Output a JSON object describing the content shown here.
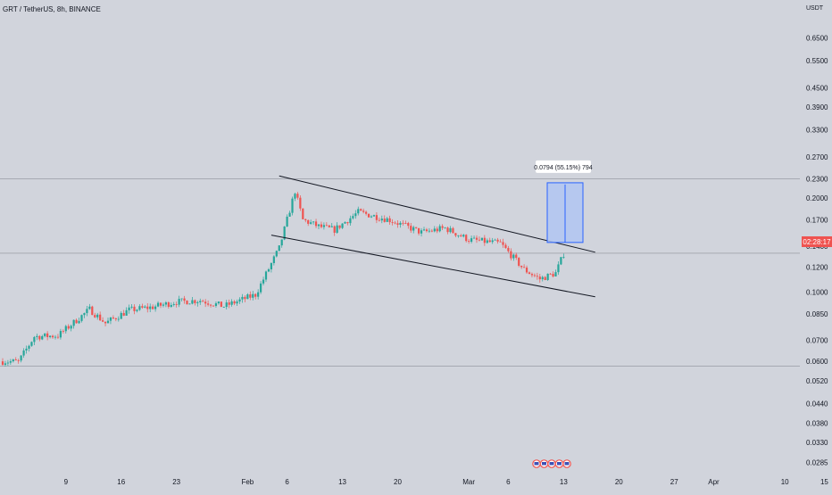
{
  "header": {
    "title": "GRT / TetherUS, 8h, BINANCE"
  },
  "price_label": {
    "text": "02:28:17",
    "price": 0.1325
  },
  "colors": {
    "background": "#d1d4dc",
    "up": "#26a69a",
    "down": "#ef5350",
    "measure_fill": "#b2c6f2",
    "measure_stroke": "#2962ff",
    "price_tag": "#ef5350"
  },
  "event_icons": [
    "icon-1",
    "icon-2",
    "icon-3",
    "icon-4",
    "icon-5"
  ],
  "measure": {
    "label": "0.0794 (55.15%) 794",
    "price_from": 0.144,
    "price_to": 0.2235
  },
  "chart_data": {
    "type": "candlestick",
    "title": "GRT / TetherUS, 8h, BINANCE",
    "y_unit": "USDT",
    "y_scale": "log",
    "ylim": [
      0.0266,
      0.92
    ],
    "y_ticks": [
      0.65,
      0.55,
      0.45,
      0.39,
      0.33,
      0.27,
      0.23,
      0.2,
      0.17,
      0.14,
      0.12,
      0.1,
      0.085,
      0.07,
      0.06,
      0.052,
      0.044,
      0.038,
      0.033,
      0.0285
    ],
    "y_tick_labels": [
      "0.6500",
      "0.5500",
      "0.4500",
      "0.3900",
      "0.3300",
      "0.2700",
      "0.2300",
      "0.2000",
      "0.1700",
      "0.1400",
      "0.1200",
      "0.1000",
      "0.0850",
      "0.0700",
      "0.0600",
      "0.0520",
      "0.0440",
      "0.0380",
      "0.0330",
      "0.0285"
    ],
    "x_ticks": [
      {
        "label": "9",
        "date": "2023-01-09"
      },
      {
        "label": "16",
        "date": "2023-01-16"
      },
      {
        "label": "23",
        "date": "2023-01-23"
      },
      {
        "label": "Feb",
        "date": "2023-02-01"
      },
      {
        "label": "6",
        "date": "2023-02-06"
      },
      {
        "label": "13",
        "date": "2023-02-13"
      },
      {
        "label": "20",
        "date": "2023-02-20"
      },
      {
        "label": "Mar",
        "date": "2023-03-01"
      },
      {
        "label": "6",
        "date": "2023-03-06"
      },
      {
        "label": "13",
        "date": "2023-03-13"
      },
      {
        "label": "20",
        "date": "2023-03-20"
      },
      {
        "label": "27",
        "date": "2023-03-27"
      },
      {
        "label": "Apr",
        "date": "2023-04-01"
      },
      {
        "label": "10",
        "date": "2023-04-10"
      },
      {
        "label": "15",
        "date": "2023-04-15"
      }
    ],
    "horizontal_lines": [
      0.23,
      0.133,
      0.058
    ],
    "trendlines": [
      {
        "from": {
          "date": "2023-02-05",
          "price": 0.235
        },
        "to": {
          "date": "2023-03-17",
          "price": 0.134
        }
      },
      {
        "from": {
          "date": "2023-02-04",
          "price": 0.152
        },
        "to": {
          "date": "2023-03-17",
          "price": 0.0965
        }
      }
    ],
    "key_points": [
      {
        "date": "2023-01-01",
        "price": 0.06
      },
      {
        "date": "2023-01-03",
        "price": 0.0598
      },
      {
        "date": "2023-01-05",
        "price": 0.072
      },
      {
        "date": "2023-01-08",
        "price": 0.0725
      },
      {
        "date": "2023-01-12",
        "price": 0.088
      },
      {
        "date": "2023-01-14",
        "price": 0.0795
      },
      {
        "date": "2023-01-17",
        "price": 0.0875
      },
      {
        "date": "2023-01-20",
        "price": 0.0895
      },
      {
        "date": "2023-01-23",
        "price": 0.093
      },
      {
        "date": "2023-01-26",
        "price": 0.094
      },
      {
        "date": "2023-01-29",
        "price": 0.09
      },
      {
        "date": "2023-02-02",
        "price": 0.098
      },
      {
        "date": "2023-02-05",
        "price": 0.138
      },
      {
        "date": "2023-02-07",
        "price": 0.21
      },
      {
        "date": "2023-02-08",
        "price": 0.17
      },
      {
        "date": "2023-02-10",
        "price": 0.162
      },
      {
        "date": "2023-02-12",
        "price": 0.158
      },
      {
        "date": "2023-02-15",
        "price": 0.18
      },
      {
        "date": "2023-02-19",
        "price": 0.17
      },
      {
        "date": "2023-02-23",
        "price": 0.155
      },
      {
        "date": "2023-02-26",
        "price": 0.16
      },
      {
        "date": "2023-03-01",
        "price": 0.147
      },
      {
        "date": "2023-03-05",
        "price": 0.143
      },
      {
        "date": "2023-03-08",
        "price": 0.118
      },
      {
        "date": "2023-03-10",
        "price": 0.11
      },
      {
        "date": "2023-03-12",
        "price": 0.115
      },
      {
        "date": "2023-03-13",
        "price": 0.1325
      }
    ]
  }
}
